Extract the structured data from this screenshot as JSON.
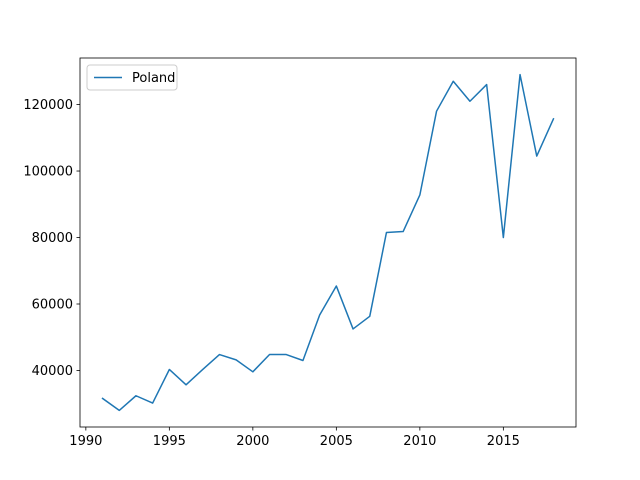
{
  "chart_data": {
    "type": "line",
    "title": "",
    "xlabel": "",
    "ylabel": "",
    "xlim": [
      1989.65,
      2019.35
    ],
    "ylim": [
      23000,
      134000
    ],
    "xticks": [
      1990,
      1995,
      2000,
      2005,
      2010,
      2015
    ],
    "yticks": [
      40000,
      60000,
      80000,
      100000,
      120000
    ],
    "grid": false,
    "legend_position": "top-left",
    "series": [
      {
        "name": "Poland",
        "color": "#1f77b4",
        "x": [
          1991,
          1992,
          1993,
          1994,
          1995,
          1996,
          1997,
          1998,
          1999,
          2000,
          2001,
          2002,
          2003,
          2004,
          2005,
          2006,
          2007,
          2008,
          2009,
          2010,
          2011,
          2012,
          2013,
          2014,
          2015,
          2016,
          2017,
          2018
        ],
        "values": [
          31600,
          28000,
          32400,
          30200,
          40300,
          35700,
          40300,
          44800,
          43200,
          39600,
          44800,
          44800,
          43000,
          56700,
          65400,
          52500,
          56300,
          81500,
          81800,
          92800,
          118000,
          127000,
          121000,
          126000,
          80000,
          129000,
          104500,
          115700
        ]
      }
    ]
  }
}
